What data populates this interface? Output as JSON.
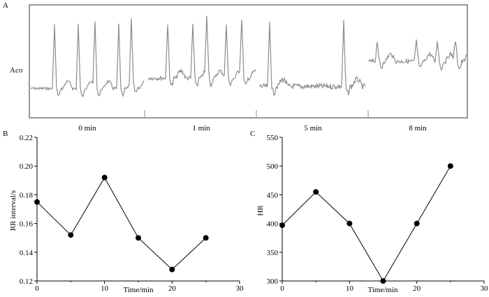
{
  "panels": {
    "a": {
      "letter": "A",
      "trace_label": "Aco",
      "segments": [
        "0 min",
        "1 min",
        "5 min",
        "8 min"
      ]
    },
    "b": {
      "letter": "B"
    },
    "c": {
      "letter": "C"
    }
  },
  "colors": {
    "trace": "#8c8c8c",
    "axis": "#000000",
    "marker": "#000000",
    "frame": "#555555"
  },
  "chart_data": [
    {
      "panel": "A",
      "type": "line",
      "title": "",
      "xlabel": "",
      "ylabel": "Aco",
      "x_categories": [
        "0 min",
        "1 min",
        "5 min",
        "8 min"
      ],
      "grid": false,
      "note_trace_shape": "ECG waveform segments, values not labeled"
    },
    {
      "panel": "B",
      "type": "line",
      "title": "",
      "xlabel": "Time/min",
      "ylabel": "RR interval/s",
      "xlim": [
        0,
        30
      ],
      "ylim": [
        0.12,
        0.22
      ],
      "xticks": [
        0,
        10,
        20,
        30
      ],
      "yticks": [
        "0.12",
        "0.14",
        "0.16",
        "0.18",
        "0.20",
        "0.22"
      ],
      "grid": false,
      "x": [
        0,
        5,
        10,
        15,
        20,
        25
      ],
      "y": [
        0.175,
        0.152,
        0.192,
        0.15,
        0.128,
        0.15
      ]
    },
    {
      "panel": "C",
      "type": "line",
      "title": "",
      "xlabel": "Time/min",
      "ylabel": "HR",
      "xlim": [
        0,
        30
      ],
      "ylim": [
        300,
        550
      ],
      "xticks": [
        0,
        10,
        20,
        30
      ],
      "yticks": [
        "300",
        "350",
        "400",
        "450",
        "500",
        "550"
      ],
      "grid": false,
      "x": [
        0,
        5,
        10,
        15,
        20,
        25
      ],
      "y": [
        397,
        455,
        400,
        300,
        400,
        500
      ]
    }
  ]
}
